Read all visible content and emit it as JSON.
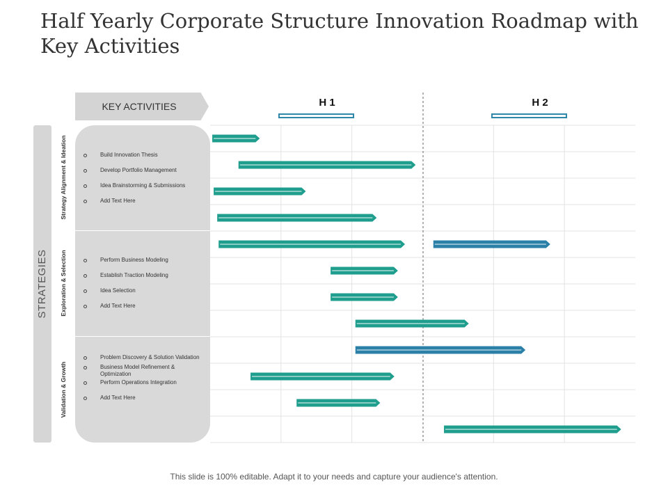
{
  "slide": {
    "title": "Half Yearly Corporate Structure Innovation Roadmap with Key Activities",
    "footer": "This slide is 100% editable. Adapt it to your needs and capture your audience's attention."
  },
  "side": {
    "strategies_label": "STRATEGIES"
  },
  "key_activities": {
    "title": "KEY ACTIVITIES"
  },
  "periods": [
    "H 1",
    "H 2"
  ],
  "groups": [
    {
      "label": "Strategy Alignment & Ideation",
      "activities": [
        "Build Innovation Thesis",
        "Develop Portfolio Management",
        "Idea Brainstorming & Submissions",
        "Add Text Here"
      ]
    },
    {
      "label": "Exploration & Selection",
      "activities": [
        "Perform Business Modeling",
        "Establish Traction Modeling",
        "Idea Selection",
        "Add Text Here"
      ]
    },
    {
      "label": "Validation & Growth",
      "activities": [
        "Problem Discovery & Solution Validation",
        "Business Model Refinement & Optimization",
        "Perform Operations Integration",
        "Add Text Here"
      ]
    }
  ],
  "colors": {
    "teal": "#1f9e8e",
    "blue": "#2b80a8",
    "accent": "#2e86a8"
  },
  "chart_data": {
    "type": "gantt",
    "x_domain": [
      0,
      6
    ],
    "unit": "grid columns (3 per half)",
    "bars": [
      {
        "row": 0,
        "start": 0.03,
        "end": 0.7,
        "color": "teal"
      },
      {
        "row": 1,
        "start": 0.4,
        "end": 2.9,
        "color": "teal"
      },
      {
        "row": 2,
        "start": 0.05,
        "end": 1.35,
        "color": "teal"
      },
      {
        "row": 3,
        "start": 0.1,
        "end": 2.35,
        "color": "teal"
      },
      {
        "row": 4,
        "start": 0.12,
        "end": 2.75,
        "color": "teal"
      },
      {
        "row": 4,
        "start": 3.15,
        "end": 4.8,
        "color": "blue"
      },
      {
        "row": 5,
        "start": 1.7,
        "end": 2.65,
        "color": "teal"
      },
      {
        "row": 6,
        "start": 1.7,
        "end": 2.65,
        "color": "teal"
      },
      {
        "row": 7,
        "start": 2.05,
        "end": 3.65,
        "color": "teal"
      },
      {
        "row": 8,
        "start": 2.05,
        "end": 4.45,
        "color": "blue"
      },
      {
        "row": 9,
        "start": 0.57,
        "end": 2.6,
        "color": "teal"
      },
      {
        "row": 10,
        "start": 1.22,
        "end": 2.4,
        "color": "teal"
      },
      {
        "row": 11,
        "start": 3.3,
        "end": 5.8,
        "color": "teal"
      }
    ]
  }
}
